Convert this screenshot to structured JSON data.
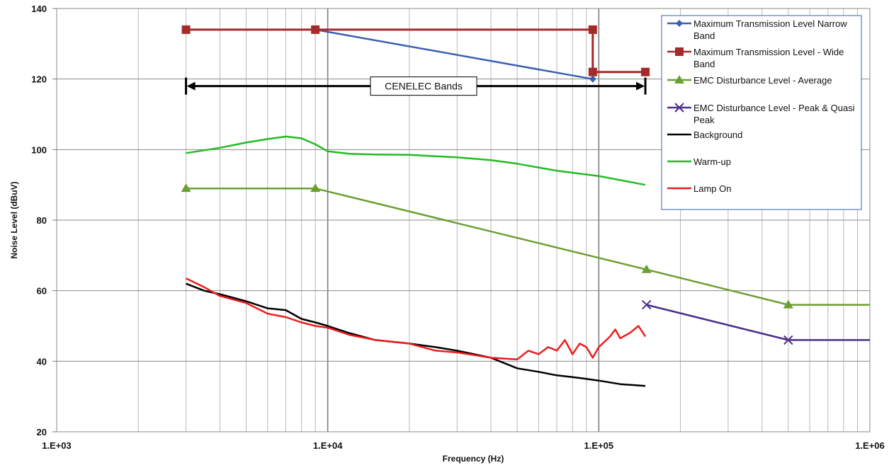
{
  "chart_data": {
    "type": "line",
    "xlabel": "Frequency (Hz)",
    "ylabel": "Noise Level (dBuV)",
    "xscale": "log",
    "xlim": [
      1000,
      1000000
    ],
    "ylim": [
      20,
      140
    ],
    "x_tick_labels": [
      "1.E+03",
      "1.E+04",
      "1.E+05",
      "1.E+06"
    ],
    "y_ticks": [
      20,
      40,
      60,
      80,
      100,
      120,
      140
    ],
    "grid": true,
    "legend_position": "top-right",
    "annotation": {
      "text": "CENELEC Bands",
      "x_range": [
        3000,
        148500
      ],
      "y": 118
    },
    "series": [
      {
        "name": "Maximum Transmission Level Narrow Band",
        "color": "#3a5fb0",
        "marker": "diamond",
        "points": [
          [
            9000,
            134
          ],
          [
            95000,
            120
          ]
        ]
      },
      {
        "name": "Maximum Transmission Level - Wide Band",
        "color": "#a52a2a",
        "marker": "square",
        "points": [
          [
            3000,
            134
          ],
          [
            9000,
            134
          ],
          [
            95000,
            134
          ],
          [
            95000,
            122
          ],
          [
            148500,
            122
          ]
        ]
      },
      {
        "name": "EMC Disturbance Level - Average",
        "color": "#6aa030",
        "marker": "triangle",
        "points": [
          [
            3000,
            89
          ],
          [
            9000,
            89
          ],
          [
            150000,
            66
          ],
          [
            500000,
            56
          ],
          [
            1000000,
            56
          ]
        ]
      },
      {
        "name": "EMC Disturbance Level - Peak & Quasi Peak",
        "color": "#4b2e8a",
        "marker": "x",
        "points": [
          [
            150000,
            56
          ],
          [
            500000,
            46
          ],
          [
            1000000,
            46
          ]
        ]
      },
      {
        "name": "Background",
        "color": "#000000",
        "marker": "none",
        "points": [
          [
            3000,
            62
          ],
          [
            3500,
            60
          ],
          [
            4000,
            59
          ],
          [
            5000,
            57
          ],
          [
            6000,
            55
          ],
          [
            7000,
            54.5
          ],
          [
            8000,
            52
          ],
          [
            9000,
            51
          ],
          [
            10000,
            50
          ],
          [
            12000,
            48
          ],
          [
            15000,
            46
          ],
          [
            20000,
            45
          ],
          [
            25000,
            44
          ],
          [
            30000,
            43
          ],
          [
            40000,
            41
          ],
          [
            50000,
            38
          ],
          [
            60000,
            37
          ],
          [
            70000,
            36
          ],
          [
            80000,
            35.5
          ],
          [
            90000,
            35
          ],
          [
            100000,
            34.5
          ],
          [
            120000,
            33.5
          ],
          [
            148500,
            33
          ]
        ]
      },
      {
        "name": "Warm-up",
        "color": "#22bb22",
        "marker": "none",
        "points": [
          [
            3000,
            99
          ],
          [
            4000,
            100.5
          ],
          [
            5000,
            102
          ],
          [
            6000,
            103
          ],
          [
            7000,
            103.7
          ],
          [
            8000,
            103.2
          ],
          [
            9000,
            101.5
          ],
          [
            10000,
            99.5
          ],
          [
            12000,
            98.8
          ],
          [
            15000,
            98.6
          ],
          [
            20000,
            98.5
          ],
          [
            30000,
            97.8
          ],
          [
            40000,
            97
          ],
          [
            50000,
            96
          ],
          [
            70000,
            94
          ],
          [
            100000,
            92.5
          ],
          [
            148500,
            90
          ]
        ]
      },
      {
        "name": "Lamp On",
        "color": "#ee1c1c",
        "marker": "none",
        "points": [
          [
            3000,
            63.5
          ],
          [
            3500,
            61
          ],
          [
            4000,
            58.5
          ],
          [
            5000,
            56.5
          ],
          [
            6000,
            53.5
          ],
          [
            7000,
            52.5
          ],
          [
            8000,
            51
          ],
          [
            9000,
            50
          ],
          [
            10000,
            49.5
          ],
          [
            12000,
            47.5
          ],
          [
            15000,
            46
          ],
          [
            20000,
            45
          ],
          [
            25000,
            43
          ],
          [
            30000,
            42.5
          ],
          [
            40000,
            41
          ],
          [
            50000,
            40.5
          ],
          [
            55000,
            43
          ],
          [
            60000,
            42
          ],
          [
            65000,
            44
          ],
          [
            70000,
            43
          ],
          [
            75000,
            46
          ],
          [
            80000,
            42
          ],
          [
            85000,
            45
          ],
          [
            90000,
            44
          ],
          [
            95000,
            41
          ],
          [
            100000,
            44
          ],
          [
            110000,
            47
          ],
          [
            115000,
            49
          ],
          [
            120000,
            46.5
          ],
          [
            130000,
            48
          ],
          [
            140000,
            50
          ],
          [
            148500,
            47
          ]
        ]
      }
    ]
  }
}
